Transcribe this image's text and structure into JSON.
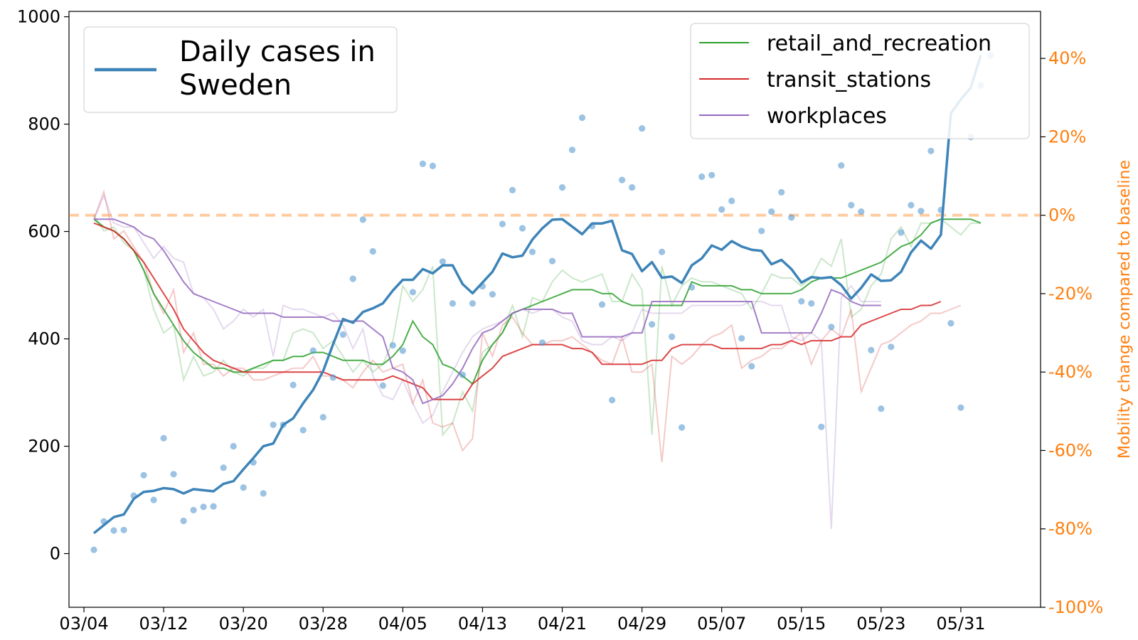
{
  "chart_data": {
    "type": "line",
    "x_dates": [
      "03/05",
      "03/06",
      "03/07",
      "03/08",
      "03/09",
      "03/10",
      "03/11",
      "03/12",
      "03/13",
      "03/14",
      "03/15",
      "03/16",
      "03/17",
      "03/18",
      "03/19",
      "03/20",
      "03/21",
      "03/22",
      "03/23",
      "03/24",
      "03/25",
      "03/26",
      "03/27",
      "03/28",
      "03/29",
      "03/30",
      "03/31",
      "04/01",
      "04/02",
      "04/03",
      "04/04",
      "04/05",
      "04/06",
      "04/07",
      "04/08",
      "04/09",
      "04/10",
      "04/11",
      "04/12",
      "04/13",
      "04/14",
      "04/15",
      "04/16",
      "04/17",
      "04/18",
      "04/19",
      "04/20",
      "04/21",
      "04/22",
      "04/23",
      "04/24",
      "04/25",
      "04/26",
      "04/27",
      "04/28",
      "04/29",
      "04/30",
      "05/01",
      "05/02",
      "05/03",
      "05/04",
      "05/05",
      "05/06",
      "05/07",
      "05/08",
      "05/09",
      "05/10",
      "05/11",
      "05/12",
      "05/13",
      "05/14",
      "05/15",
      "05/16",
      "05/17",
      "05/18",
      "05/19",
      "05/20",
      "05/21",
      "05/22",
      "05/23",
      "05/24",
      "05/25",
      "05/26",
      "05/27",
      "05/28",
      "05/29",
      "05/30",
      "05/31",
      "06/01",
      "06/02",
      "06/03"
    ],
    "x_ticks": [
      "03/04",
      "03/12",
      "03/20",
      "03/28",
      "04/05",
      "04/13",
      "04/21",
      "04/29",
      "05/07",
      "05/15",
      "05/23",
      "05/31"
    ],
    "left_axis": {
      "ticks": [
        "0",
        "200",
        "400",
        "600",
        "800",
        "1000"
      ],
      "ylim": [
        -100,
        1010
      ]
    },
    "right_axis": {
      "label": "Mobility change compared to baseline",
      "ticks": [
        "-100%",
        "-80%",
        "-60%",
        "-40%",
        "-20%",
        "0%",
        "20%",
        "40%"
      ],
      "ylim": [
        -100,
        52
      ]
    },
    "daily_points": [
      7,
      60,
      43,
      44,
      108,
      146,
      100,
      215,
      148,
      61,
      81,
      87,
      88,
      160,
      200,
      123,
      170,
      112,
      240,
      240,
      314,
      230,
      378,
      254,
      328,
      408,
      512,
      622,
      563,
      313,
      388,
      378,
      487,
      726,
      722,
      544,
      466,
      333,
      466,
      498,
      483,
      614,
      677,
      606,
      562,
      393,
      545,
      682,
      752,
      812,
      610,
      464,
      286,
      696,
      682,
      792,
      427,
      562,
      404,
      235,
      496,
      702,
      705,
      641,
      657,
      401,
      349,
      601,
      637,
      673,
      626,
      470,
      466,
      236,
      422,
      723,
      649,
      637,
      379,
      270,
      385,
      598,
      649,
      638,
      750,
      640,
      429,
      272,
      776,
      872,
      928
    ],
    "daily_avg": [
      38,
      53,
      68,
      73,
      102,
      115,
      117,
      122,
      120,
      112,
      120,
      118,
      116,
      130,
      135,
      157,
      178,
      200,
      205,
      240,
      252,
      280,
      305,
      340,
      390,
      437,
      430,
      450,
      457,
      466,
      490,
      510,
      510,
      530,
      522,
      537,
      537,
      502,
      485,
      505,
      525,
      559,
      552,
      555,
      585,
      606,
      622,
      623,
      609,
      595,
      615,
      615,
      620,
      565,
      558,
      526,
      543,
      514,
      516,
      504,
      537,
      550,
      574,
      566,
      582,
      572,
      566,
      564,
      539,
      547,
      530,
      505,
      515,
      513,
      515,
      500,
      475,
      495,
      520,
      508,
      509,
      525,
      561,
      583,
      568,
      594,
      820,
      846,
      868,
      928
    ],
    "series": [
      {
        "name": "retail_and_recreation",
        "color": "#2ca02c",
        "values": [
          -1,
          -3,
          -4,
          -6,
          -9,
          -14,
          -20,
          -24,
          -28,
          -32,
          -35,
          -37,
          -39,
          -39,
          -40,
          -40,
          -39,
          -38,
          -37,
          -37,
          -36,
          -36,
          -35,
          -35,
          -36,
          -37,
          -37,
          -37,
          -38,
          -38,
          -36,
          -33,
          -27,
          -31,
          -33,
          -38,
          -39,
          -41,
          -43,
          -37,
          -33,
          -30,
          -25,
          -24,
          -23,
          -22,
          -21,
          -20,
          -19,
          -19,
          -19,
          -20,
          -20,
          -22,
          -23,
          -23,
          -23,
          -23,
          -23,
          -23,
          -17,
          -18,
          -18,
          -18,
          -18,
          -19,
          -19,
          -20,
          -20,
          -20,
          -20,
          -19,
          -17,
          -16,
          -16,
          -16,
          -15,
          -14,
          -13,
          -12,
          -10,
          -8,
          -7,
          -5,
          -2,
          -1,
          -1,
          -1,
          -1,
          -2
        ],
        "raw": [
          0,
          -4,
          -3,
          -7,
          -9,
          -14,
          -24,
          -30,
          -28,
          -42,
          -36,
          -41,
          -40,
          -37,
          -40,
          -41,
          -39,
          -39,
          -37,
          -37,
          -30,
          -29,
          -30,
          -34,
          -32,
          -36,
          -40,
          -37,
          -40,
          -38,
          -32,
          -18,
          -22,
          -19,
          -13,
          -56,
          -53,
          -45,
          -50,
          -35,
          -33,
          -30,
          -23,
          -31,
          -21,
          -22,
          -17,
          -14,
          -16,
          -17,
          -16,
          -15,
          -22,
          -22,
          -15,
          -19,
          -56,
          -13,
          -23,
          -18,
          -16,
          -17,
          -17,
          -18,
          -19,
          -20,
          -24,
          -20,
          -15,
          -16,
          -16,
          -18,
          -16,
          -11,
          -13,
          -6,
          -26,
          -24,
          -18,
          -15,
          -6,
          -3,
          -8,
          -2,
          -2,
          -1,
          -3,
          -5,
          -2,
          -2
        ]
      },
      {
        "name": "transit_stations",
        "color": "#d62728",
        "values": [
          -2,
          -3,
          -4,
          -6,
          -9,
          -12,
          -16,
          -20,
          -24,
          -29,
          -32,
          -35,
          -37,
          -38,
          -39,
          -40,
          -40,
          -40,
          -40,
          -40,
          -40,
          -40,
          -40,
          -40,
          -41,
          -42,
          -42,
          -42,
          -42,
          -42,
          -41,
          -42,
          -43,
          -44,
          -47,
          -47,
          -47,
          -47,
          -43,
          -41,
          -39,
          -36,
          -35,
          -34,
          -33,
          -33,
          -33,
          -33,
          -34,
          -34,
          -35,
          -38,
          -38,
          -38,
          -38,
          -38,
          -37,
          -37,
          -34,
          -33,
          -33,
          -33,
          -33,
          -34,
          -34,
          -34,
          -34,
          -34,
          -33,
          -33,
          -32,
          -33,
          -32,
          -32,
          -32,
          -31,
          -31,
          -28,
          -27,
          -26,
          -25,
          -24,
          -24,
          -23,
          -23,
          -22
        ],
        "raw": [
          -1,
          6,
          -6,
          -4,
          -8,
          -12,
          -20,
          -25,
          -19,
          -35,
          -30,
          -38,
          -38,
          -41,
          -39,
          -39,
          -42,
          -42,
          -41,
          -40,
          -39,
          -39,
          -36,
          -41,
          -41,
          -42,
          -44,
          -40,
          -37,
          -40,
          -39,
          -38,
          -48,
          -42,
          -53,
          -54,
          -53,
          -60,
          -57,
          -30,
          -36,
          -28,
          -26,
          -30,
          -33,
          -33,
          -32,
          -32,
          -31,
          -33,
          -35,
          -37,
          -38,
          -31,
          -40,
          -40,
          -38,
          -63,
          -36,
          -38,
          -36,
          -33,
          -31,
          -30,
          -28,
          -39,
          -37,
          -36,
          -34,
          -34,
          -32,
          -30,
          -38,
          -32,
          -29,
          -31,
          -24,
          -45,
          -39,
          -33,
          -32,
          -30,
          -28,
          -27,
          -25,
          -25,
          -24,
          -23
        ]
      },
      {
        "name": "workplaces",
        "color": "#9467bd",
        "values": [
          -1,
          -1,
          -1,
          -2,
          -3,
          -5,
          -6,
          -9,
          -13,
          -17,
          -20,
          -21,
          -22,
          -23,
          -24,
          -25,
          -25,
          -25,
          -25,
          -26,
          -26,
          -26,
          -26,
          -26,
          -27,
          -27,
          -27,
          -27,
          -29,
          -31,
          -39,
          -40,
          -42,
          -48,
          -47,
          -46,
          -43,
          -39,
          -34,
          -30,
          -29,
          -27,
          -25,
          -24,
          -24,
          -24,
          -24,
          -25,
          -25,
          -31,
          -31,
          -31,
          -31,
          -31,
          -30,
          -30,
          -22,
          -22,
          -22,
          -22,
          -22,
          -22,
          -22,
          -22,
          -22,
          -22,
          -22,
          -30,
          -30,
          -30,
          -30,
          -30,
          -30,
          -25,
          -19,
          -20,
          -22,
          -23,
          -23,
          -23
        ],
        "raw": [
          -1,
          5,
          -2,
          -3,
          -3,
          -7,
          -11,
          -8,
          -11,
          -12,
          -20,
          -21,
          -24,
          -29,
          -27,
          -24,
          -26,
          -24,
          -36,
          -23,
          -24,
          -24,
          -25,
          -26,
          -25,
          -28,
          -34,
          -29,
          -41,
          -46,
          -47,
          -42,
          -48,
          -53,
          -51,
          -45,
          -40,
          -35,
          -31,
          -29,
          -28,
          -27,
          -25,
          -24,
          -25,
          -24,
          -24,
          -26,
          -27,
          -32,
          -33,
          -33,
          -31,
          -32,
          -30,
          -24,
          -25,
          -25,
          -25,
          -25,
          -23,
          -23,
          -23,
          -23,
          -23,
          -23,
          -22,
          -22,
          -23,
          -23,
          -31,
          -32,
          -30,
          -32,
          -80,
          -21,
          -18,
          -22,
          -22,
          -22
        ]
      }
    ],
    "legend_left": {
      "lines": [
        "Daily cases in",
        "Sweden"
      ]
    },
    "baseline_pct": 0
  }
}
